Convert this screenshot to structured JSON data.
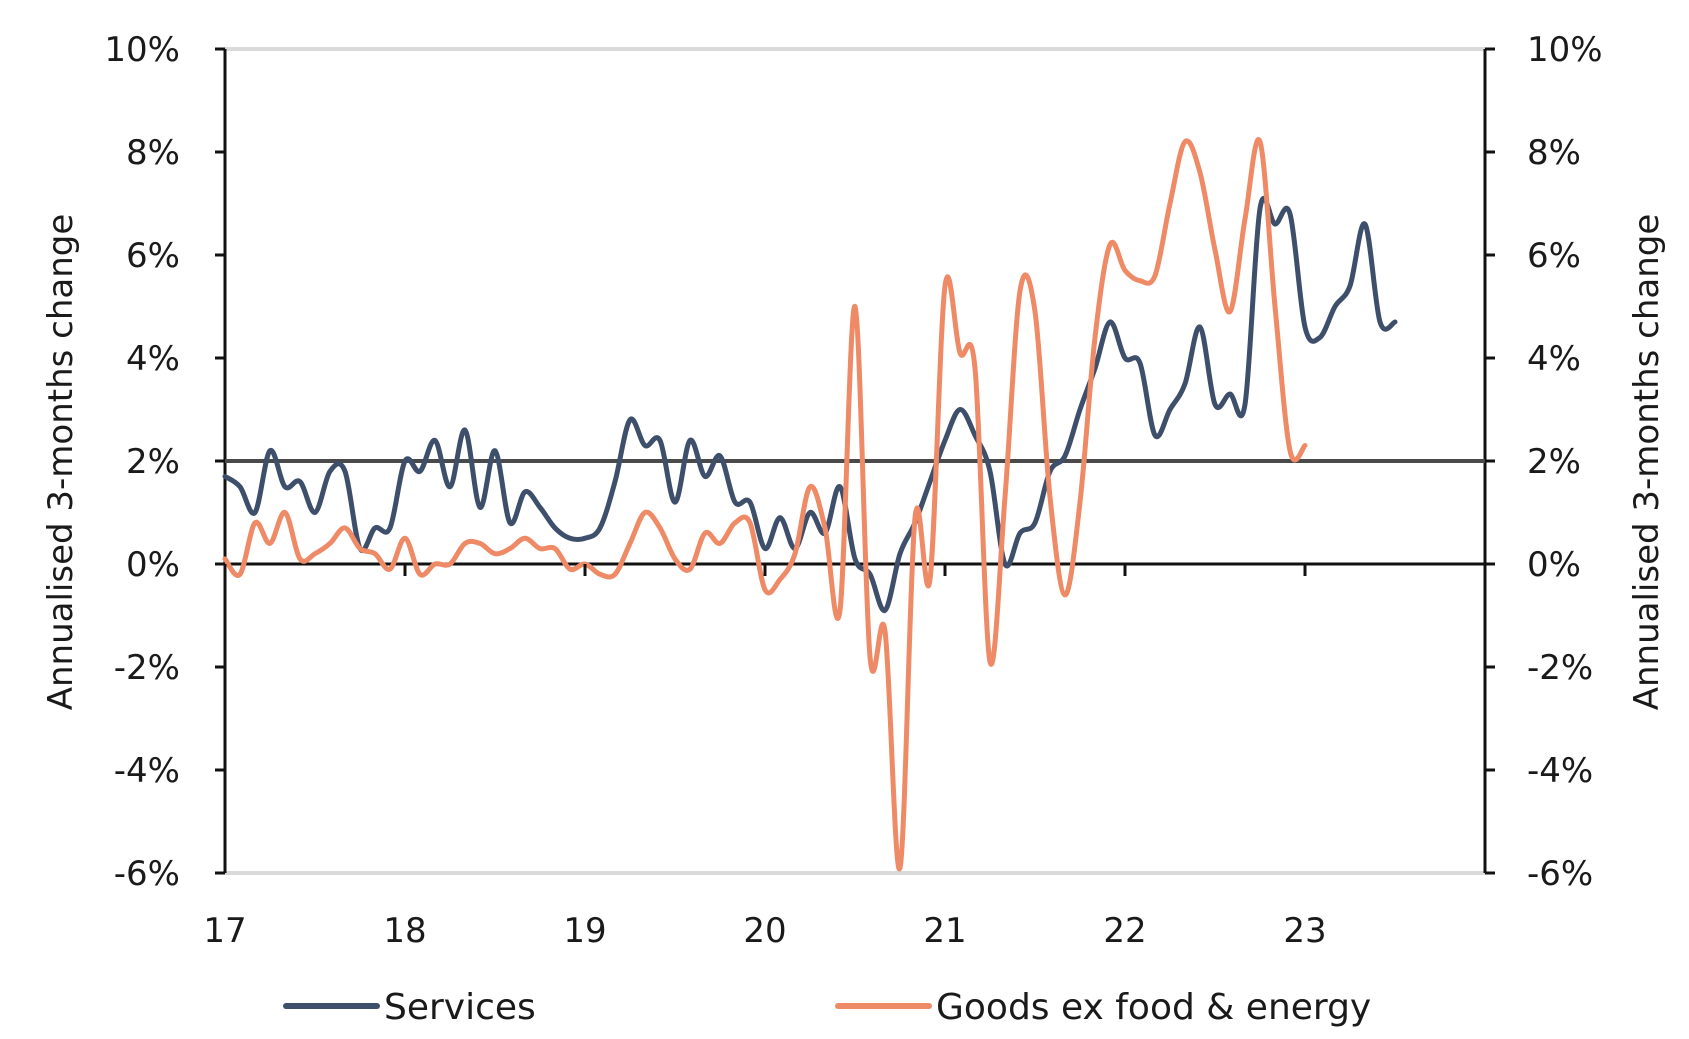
{
  "chart_data": {
    "type": "line",
    "x_start": 2017,
    "x_end": 2024,
    "x_ticks": [
      {
        "value": 2017,
        "label": "17"
      },
      {
        "value": 2018,
        "label": "18"
      },
      {
        "value": 2019,
        "label": "19"
      },
      {
        "value": 2020,
        "label": "20"
      },
      {
        "value": 2021,
        "label": "21"
      },
      {
        "value": 2022,
        "label": "22"
      },
      {
        "value": 2023,
        "label": "23"
      }
    ],
    "y_left": {
      "label": "Annualised 3-months change",
      "ylim": [
        -6,
        10
      ],
      "ticks": [
        {
          "value": 10,
          "label": "10%"
        },
        {
          "value": 8,
          "label": "8%"
        },
        {
          "value": 6,
          "label": "6%"
        },
        {
          "value": 4,
          "label": "4%"
        },
        {
          "value": 2,
          "label": "2%"
        },
        {
          "value": 0,
          "label": "0%"
        },
        {
          "value": -2,
          "label": "-2%"
        },
        {
          "value": -4,
          "label": "-4%"
        },
        {
          "value": -6,
          "label": "-6%"
        }
      ]
    },
    "y_right": {
      "label": "Annualised 3-months change",
      "ylim": [
        -6,
        10
      ],
      "ticks": [
        {
          "value": 10,
          "label": "10%"
        },
        {
          "value": 8,
          "label": "8%"
        },
        {
          "value": 6,
          "label": "6%"
        },
        {
          "value": 4,
          "label": "4%"
        },
        {
          "value": 2,
          "label": "2%"
        },
        {
          "value": 0,
          "label": "0%"
        },
        {
          "value": -2,
          "label": "-2%"
        },
        {
          "value": -4,
          "label": "-4%"
        },
        {
          "value": -6,
          "label": "-6%"
        }
      ]
    },
    "reference_line": 2,
    "grid": false,
    "legend_position": "bottom",
    "series": [
      {
        "name": "Services",
        "color": "#3d4f6b",
        "values": [
          1.7,
          1.5,
          1.0,
          2.2,
          1.5,
          1.6,
          1.0,
          1.8,
          1.8,
          0.3,
          0.7,
          0.7,
          2.0,
          1.8,
          2.4,
          1.5,
          2.6,
          1.1,
          2.2,
          0.8,
          1.4,
          1.1,
          0.7,
          0.5,
          0.5,
          0.7,
          1.6,
          2.8,
          2.3,
          2.4,
          1.2,
          2.4,
          1.7,
          2.1,
          1.2,
          1.2,
          0.3,
          0.9,
          0.3,
          1.0,
          0.6,
          1.5,
          0.1,
          -0.2,
          -0.9,
          0.2,
          0.8,
          1.6,
          2.4,
          3.0,
          2.5,
          1.8,
          0.0,
          0.6,
          0.8,
          1.8,
          2.1,
          3.0,
          3.8,
          4.7,
          4.0,
          3.9,
          2.5,
          3.0,
          3.5,
          4.6,
          3.1,
          3.3,
          3.1,
          6.9,
          6.6,
          6.8,
          4.6,
          4.4,
          5.0,
          5.4,
          6.6,
          4.7,
          4.7
        ],
        "last_label": "4.7%"
      },
      {
        "name": "Goods ex food & energy",
        "color": "#ee8a65",
        "values": [
          0.1,
          -0.2,
          0.8,
          0.4,
          1.0,
          0.1,
          0.2,
          0.4,
          0.7,
          0.3,
          0.2,
          -0.1,
          0.5,
          -0.2,
          0.0,
          0.0,
          0.4,
          0.4,
          0.2,
          0.3,
          0.5,
          0.3,
          0.3,
          -0.1,
          0.0,
          -0.2,
          -0.2,
          0.4,
          1.0,
          0.7,
          0.1,
          -0.1,
          0.6,
          0.4,
          0.8,
          0.8,
          -0.5,
          -0.3,
          0.2,
          1.5,
          0.7,
          -0.9,
          5.0,
          -1.8,
          -1.3,
          -5.9,
          0.9,
          -0.3,
          5.4,
          4.1,
          3.8,
          -1.9,
          1.3,
          5.3,
          4.9,
          1.3,
          -0.6,
          1.2,
          4.4,
          6.2,
          5.7,
          5.5,
          5.6,
          7.0,
          8.2,
          7.6,
          6.1,
          4.9,
          6.7,
          8.2,
          5.0,
          2.2,
          2.3
        ]
      }
    ]
  }
}
